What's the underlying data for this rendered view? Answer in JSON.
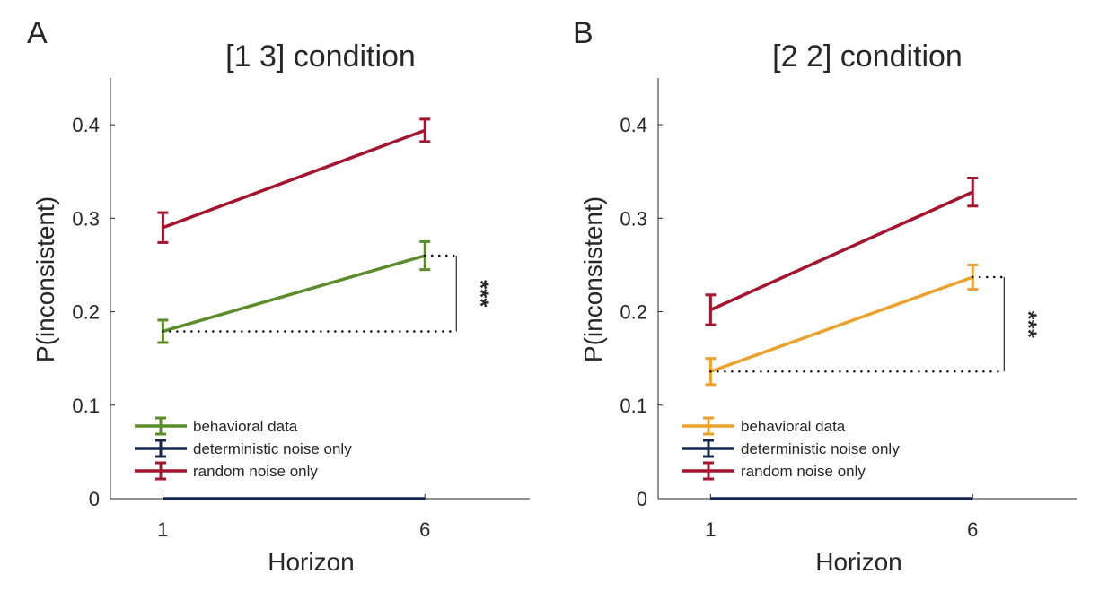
{
  "panels": [
    {
      "letter": "A"
    },
    {
      "letter": "B"
    }
  ],
  "chart_data": [
    {
      "type": "line",
      "title": "[1 3] condition",
      "xlabel": "Horizon",
      "ylabel": "P(inconsistent)",
      "x": [
        1,
        6
      ],
      "xticks": [
        "1",
        "6"
      ],
      "xlim": [
        0,
        8
      ],
      "ylim": [
        0,
        0.45
      ],
      "yticks": [
        "0",
        "0.1",
        "0.2",
        "0.3",
        "0.4"
      ],
      "legend_position": "bottom-left",
      "significance": "***",
      "series": [
        {
          "name": "behavioral data",
          "color": "#5b8c2a",
          "values": [
            0.179,
            0.26
          ],
          "errors": [
            0.012,
            0.015
          ]
        },
        {
          "name": "deterministic noise only",
          "color": "#14254e",
          "values": [
            0,
            0
          ],
          "errors": [
            0,
            0
          ]
        },
        {
          "name": "random noise only",
          "color": "#a5132d",
          "values": [
            0.29,
            0.394
          ],
          "errors": [
            0.016,
            0.012
          ]
        }
      ]
    },
    {
      "type": "line",
      "title": "[2 2] condition",
      "xlabel": "Horizon",
      "ylabel": "P(inconsistent)",
      "x": [
        1,
        6
      ],
      "xticks": [
        "1",
        "6"
      ],
      "xlim": [
        0,
        8
      ],
      "ylim": [
        0,
        0.45
      ],
      "yticks": [
        "0",
        "0.1",
        "0.2",
        "0.3",
        "0.4"
      ],
      "legend_position": "bottom-left",
      "significance": "***",
      "series": [
        {
          "name": "behavioral data",
          "color": "#eba12a",
          "values": [
            0.136,
            0.237
          ],
          "errors": [
            0.014,
            0.013
          ]
        },
        {
          "name": "deterministic noise only",
          "color": "#14254e",
          "values": [
            0,
            0
          ],
          "errors": [
            0,
            0
          ]
        },
        {
          "name": "random noise only",
          "color": "#a5132d",
          "values": [
            0.202,
            0.328
          ],
          "errors": [
            0.016,
            0.015
          ]
        }
      ]
    }
  ]
}
